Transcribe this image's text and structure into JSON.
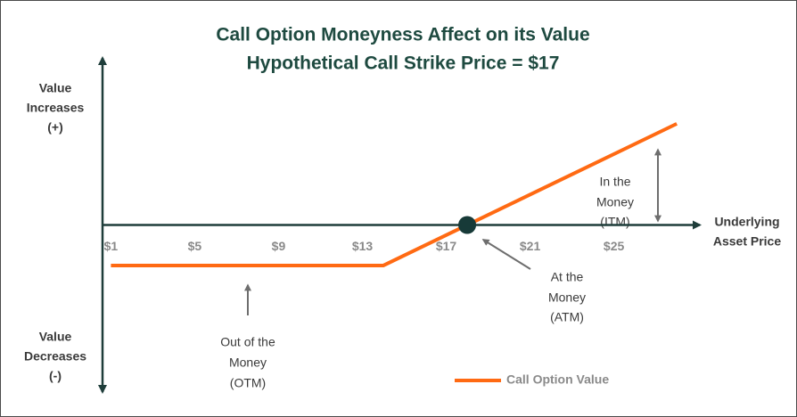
{
  "chart_data": {
    "type": "line",
    "title": [
      "Call Option Moneyness Affect on its Value",
      "Hypothetical Call Strike Price = $17"
    ],
    "y_axis_top_label": [
      "Value",
      "Increases",
      "(+)"
    ],
    "y_axis_bottom_label": [
      "Value",
      "Decreases",
      "(-)"
    ],
    "x_axis_label": [
      "Underlying",
      "Asset Price"
    ],
    "xlim": [
      0.6,
      29.1
    ],
    "ylim": [
      -16.5,
      16.5
    ],
    "xticks": [
      {
        "value": 1,
        "label": "$1"
      },
      {
        "value": 5,
        "label": "$5"
      },
      {
        "value": 9,
        "label": "$9"
      },
      {
        "value": 13,
        "label": "$13"
      },
      {
        "value": 17,
        "label": "$17"
      },
      {
        "value": 21,
        "label": "$21"
      },
      {
        "value": 25,
        "label": "$25"
      }
    ],
    "series": [
      {
        "name": "Call Option Value",
        "color": "#ff6a13",
        "x": [
          1,
          14,
          28
        ],
        "values": [
          -4,
          -4,
          10
        ]
      }
    ],
    "atm_point": {
      "x": 18,
      "y": 0
    },
    "annotations": {
      "itm": [
        "In the",
        "Money",
        "(ITM)"
      ],
      "atm": [
        "At the",
        "Money",
        "(ATM)"
      ],
      "otm": [
        "Out of the",
        "Money",
        "(OTM)"
      ]
    }
  }
}
